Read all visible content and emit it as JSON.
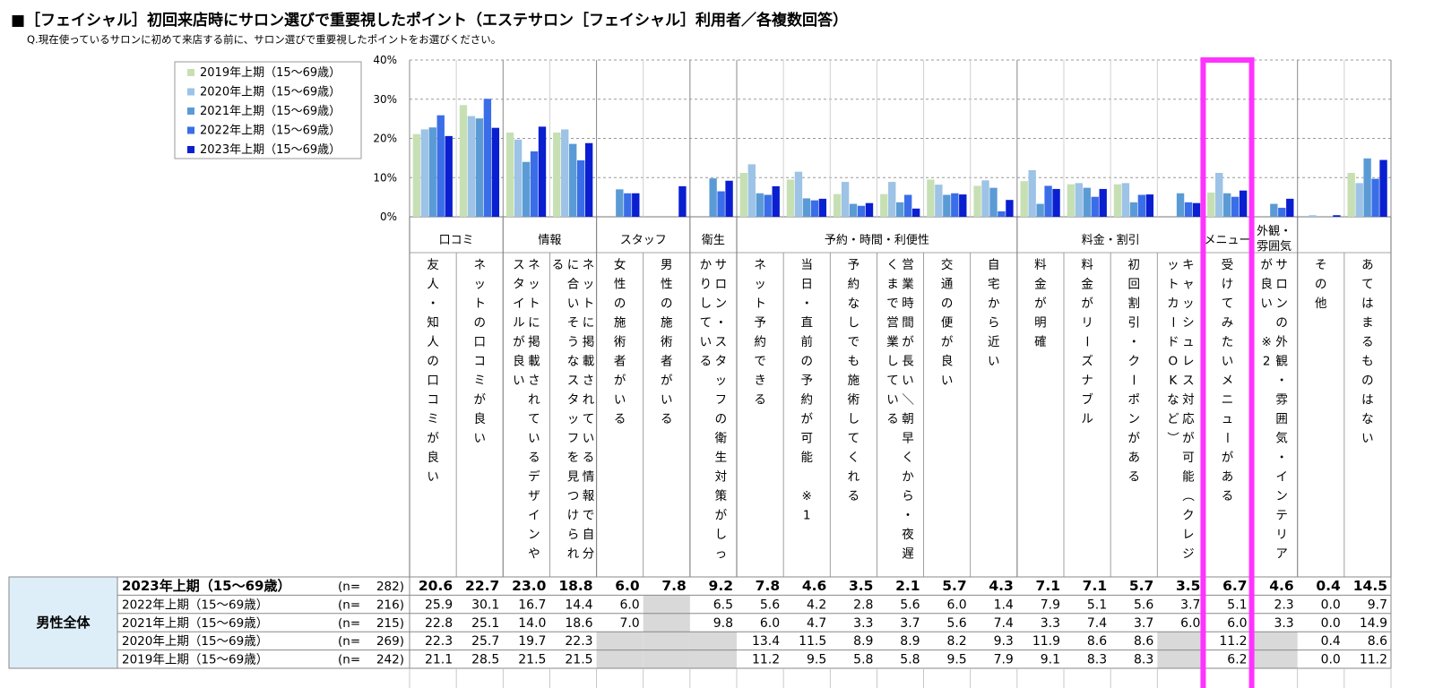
{
  "title": "■［フェイシャル］初回来店時にサロン選びで重要視したポイント（エステサロン［フェイシャル］利用者／各複数回答）",
  "question": "Q.現在使っているサロンに初めて来店する前に、サロン選びで重要視したポイントをお選びください。",
  "chart_data": {
    "type": "bar",
    "yaxis_ticks": [
      "40%",
      "30%",
      "20%",
      "10%",
      "0%"
    ],
    "ylim": [
      0,
      40
    ],
    "grid": true,
    "legend_position": "top-left",
    "groups": [
      {
        "label": "口コミ",
        "span": 2
      },
      {
        "label": "情報",
        "span": 2
      },
      {
        "label": "スタッフ",
        "span": 2
      },
      {
        "label": "衛生",
        "span": 1
      },
      {
        "label": "予約・時間・利便性",
        "span": 6
      },
      {
        "label": "料金・割引",
        "span": 4
      },
      {
        "label": "メニュー",
        "span": 1
      },
      {
        "label": "外観・雰囲気",
        "span": 1
      },
      {
        "label": "",
        "span": 2
      }
    ],
    "categories": [
      "友人・知人の口コミが良い",
      "ネットの口コミが良い",
      "ネットに掲載されているデザインやスタイルが良い",
      "ネットに掲載されている情報で自分に合いそうなスタッフを見つけられる",
      "女性の施術者がいる",
      "男性の施術者がいる",
      "サロン・スタッフの衛生対策がしっかりしている",
      "ネット予約できる",
      "当日・直前の予約が可能　※1",
      "予約なしでも施術してくれる",
      "営業時間が長い／朝早くから・夜遅くまで営業している",
      "交通の便が良い",
      "自宅から近い",
      "料金が明確",
      "料金がリーズナブル",
      "初回割引・クーポンがある",
      "キャッシュレス対応が可能（クレジットカードOKなど）",
      "受けてみたいメニューがある",
      "サロンの外観・雰囲気・インテリアが良い　※2",
      "その他",
      "あてはまるものはない"
    ],
    "segment_label": "男性全体",
    "series": [
      {
        "name": "2019年上期（15～69歳）",
        "color": "#c6e0b4",
        "n": "242",
        "values": [
          21.1,
          28.5,
          21.5,
          21.5,
          null,
          null,
          null,
          11.2,
          9.5,
          5.8,
          5.8,
          9.5,
          7.9,
          9.1,
          8.3,
          8.3,
          null,
          6.2,
          null,
          0.0,
          11.2
        ]
      },
      {
        "name": "2020年上期（15～69歳）",
        "color": "#9dc3e6",
        "n": "269",
        "values": [
          22.3,
          25.7,
          19.7,
          22.3,
          null,
          null,
          null,
          13.4,
          11.5,
          8.9,
          8.9,
          8.2,
          9.3,
          11.9,
          8.6,
          8.6,
          null,
          11.2,
          null,
          0.4,
          8.6
        ]
      },
      {
        "name": "2021年上期（15～69歳）",
        "color": "#5b9bd5",
        "n": "215",
        "values": [
          22.8,
          25.1,
          14.0,
          18.6,
          7.0,
          null,
          9.8,
          6.0,
          4.7,
          3.3,
          3.7,
          5.6,
          7.4,
          3.3,
          7.4,
          3.7,
          6.0,
          6.0,
          3.3,
          0.0,
          14.9
        ]
      },
      {
        "name": "2022年上期（15～69歳）",
        "color": "#3a6ee8",
        "n": "216",
        "values": [
          25.9,
          30.1,
          16.7,
          14.4,
          6.0,
          null,
          6.5,
          5.6,
          4.2,
          2.8,
          5.6,
          6.0,
          1.4,
          7.9,
          5.1,
          5.6,
          3.7,
          5.1,
          2.3,
          0.0,
          9.7
        ]
      },
      {
        "name": "2023年上期（15～69歳）",
        "color": "#0a1fd0",
        "n": "282",
        "values": [
          20.6,
          22.7,
          23.0,
          18.8,
          6.0,
          7.8,
          9.2,
          7.8,
          4.6,
          3.5,
          2.1,
          5.7,
          4.3,
          7.1,
          7.1,
          5.7,
          3.5,
          6.7,
          4.6,
          0.4,
          14.5
        ]
      }
    ],
    "table_rows": [
      {
        "label": "2023年上期（15～69歳）",
        "n_prefix": "(n=",
        "n": "282)",
        "bold": true,
        "shade": [],
        "values": [
          "20.6",
          "22.7",
          "23.0",
          "18.8",
          "6.0",
          "7.8",
          "9.2",
          "7.8",
          "4.6",
          "3.5",
          "2.1",
          "5.7",
          "4.3",
          "7.1",
          "7.1",
          "5.7",
          "3.5",
          "6.7",
          "4.6",
          "0.4",
          "14.5"
        ]
      },
      {
        "label": "2022年上期（15～69歳）",
        "n_prefix": "(n=",
        "n": "216)",
        "bold": false,
        "shade": [
          5
        ],
        "values": [
          "25.9",
          "30.1",
          "16.7",
          "14.4",
          "6.0",
          "",
          "6.5",
          "5.6",
          "4.2",
          "2.8",
          "5.6",
          "6.0",
          "1.4",
          "7.9",
          "5.1",
          "5.6",
          "3.7",
          "5.1",
          "2.3",
          "0.0",
          "9.7"
        ]
      },
      {
        "label": "2021年上期（15～69歳）",
        "n_prefix": "(n=",
        "n": "215)",
        "bold": false,
        "shade": [
          5
        ],
        "values": [
          "22.8",
          "25.1",
          "14.0",
          "18.6",
          "7.0",
          "",
          "9.8",
          "6.0",
          "4.7",
          "3.3",
          "3.7",
          "5.6",
          "7.4",
          "3.3",
          "7.4",
          "3.7",
          "6.0",
          "6.0",
          "3.3",
          "0.0",
          "14.9"
        ]
      },
      {
        "label": "2020年上期（15～69歳）",
        "n_prefix": "(n=",
        "n": "269)",
        "bold": false,
        "shade": [
          4,
          5,
          6,
          16,
          18
        ],
        "values": [
          "22.3",
          "25.7",
          "19.7",
          "22.3",
          "",
          "",
          "",
          "13.4",
          "11.5",
          "8.9",
          "8.9",
          "8.2",
          "9.3",
          "11.9",
          "8.6",
          "8.6",
          "",
          "11.2",
          "",
          "0.4",
          "8.6"
        ]
      },
      {
        "label": "2019年上期（15～69歳）",
        "n_prefix": "(n=",
        "n": "242)",
        "bold": false,
        "shade": [
          4,
          5,
          6,
          16,
          18
        ],
        "values": [
          "21.1",
          "28.5",
          "21.5",
          "21.5",
          "",
          "",
          "",
          "11.2",
          "9.5",
          "5.8",
          "5.8",
          "9.5",
          "7.9",
          "9.1",
          "8.3",
          "8.3",
          "",
          "6.2",
          "",
          "0.0",
          "11.2"
        ]
      }
    ],
    "highlight_column": 17,
    "highlight_color": "#ff33ff",
    "grid_color": "#9a9a9a",
    "segment_fill": "#ddeef8"
  }
}
